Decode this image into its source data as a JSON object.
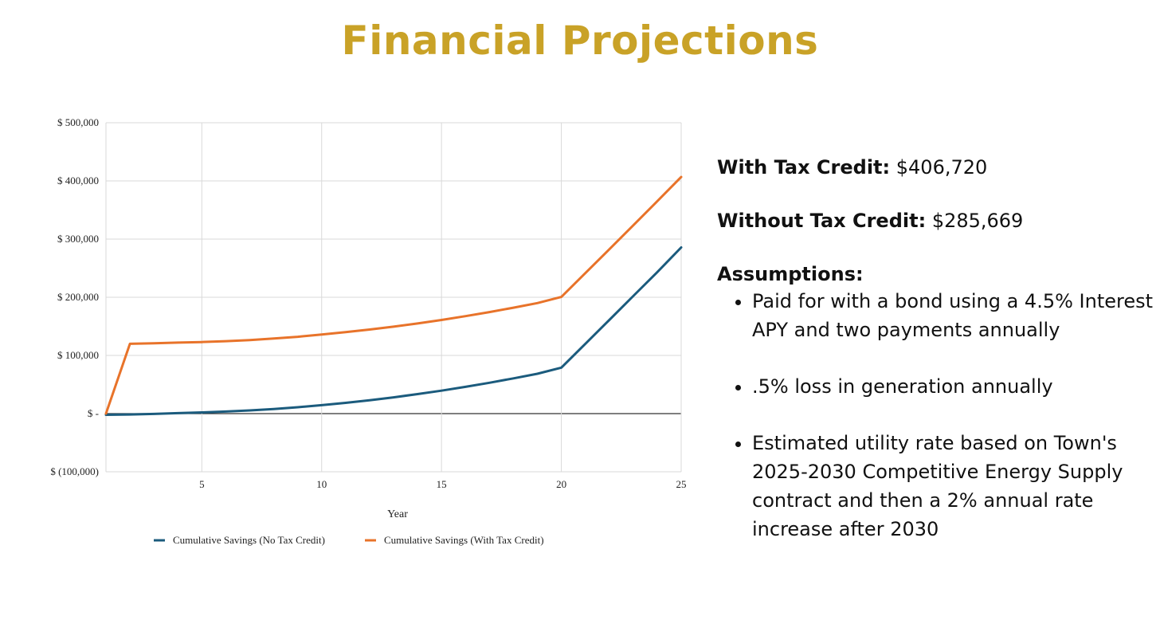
{
  "title": "Financial Projections",
  "colors": {
    "title": "#C9A227",
    "no_credit": "#1B5B7D",
    "with_credit": "#E8732A",
    "grid": "#d9d9d9",
    "zero": "#333333"
  },
  "stats": {
    "with_label": "With Tax Credit:",
    "with_value": "$406,720",
    "without_label": "Without Tax Credit:",
    "without_value": "$285,669"
  },
  "assumptions": {
    "heading": "Assumptions:",
    "items": [
      "Paid for with a bond using a 4.5% Interest APY and two payments annually",
      ".5% loss in generation annually",
      "Estimated utility rate based on Town's 2025-2030 Competitive Energy Supply contract and then a 2% annual rate increase after 2030"
    ]
  },
  "chart_data": {
    "type": "line",
    "xlabel": "Year",
    "ylabel": "",
    "xlim": [
      1,
      25
    ],
    "ylim": [
      -100000,
      500000
    ],
    "x_ticks": [
      5,
      10,
      15,
      20,
      25
    ],
    "x_tick_labels": [
      "5",
      "10",
      "15",
      "20",
      "25"
    ],
    "y_ticks": [
      -100000,
      0,
      100000,
      200000,
      300000,
      400000,
      500000
    ],
    "y_tick_labels": [
      "$ (100,000)",
      "$ -",
      "$ 100,000",
      "$ 200,000",
      "$ 300,000",
      "$ 400,000",
      "$ 500,000"
    ],
    "grid": true,
    "legend_position": "bottom",
    "x": [
      1,
      2,
      3,
      4,
      5,
      6,
      7,
      8,
      9,
      10,
      11,
      12,
      13,
      14,
      15,
      16,
      17,
      18,
      19,
      20,
      21,
      22,
      23,
      24,
      25
    ],
    "series": [
      {
        "name": "Cumulative Savings (No Tax Credit)",
        "color": "#1B5B7D",
        "values": [
          -2000,
          -1500,
          -500,
          800,
          2000,
          3500,
          5500,
          8000,
          11000,
          14500,
          18500,
          23000,
          28000,
          33500,
          39500,
          46000,
          53000,
          60500,
          68500,
          79000,
          120000,
          161000,
          202000,
          243000,
          285669
        ]
      },
      {
        "name": "Cumulative Savings (With Tax Credit)",
        "color": "#E8732A",
        "values": [
          0,
          120000,
          121000,
          122000,
          123000,
          124500,
          126500,
          129000,
          132000,
          136000,
          140000,
          144500,
          149500,
          155000,
          161000,
          167500,
          174500,
          182000,
          190000,
          200500,
          241500,
          282500,
          323500,
          365000,
          406720
        ]
      }
    ]
  }
}
